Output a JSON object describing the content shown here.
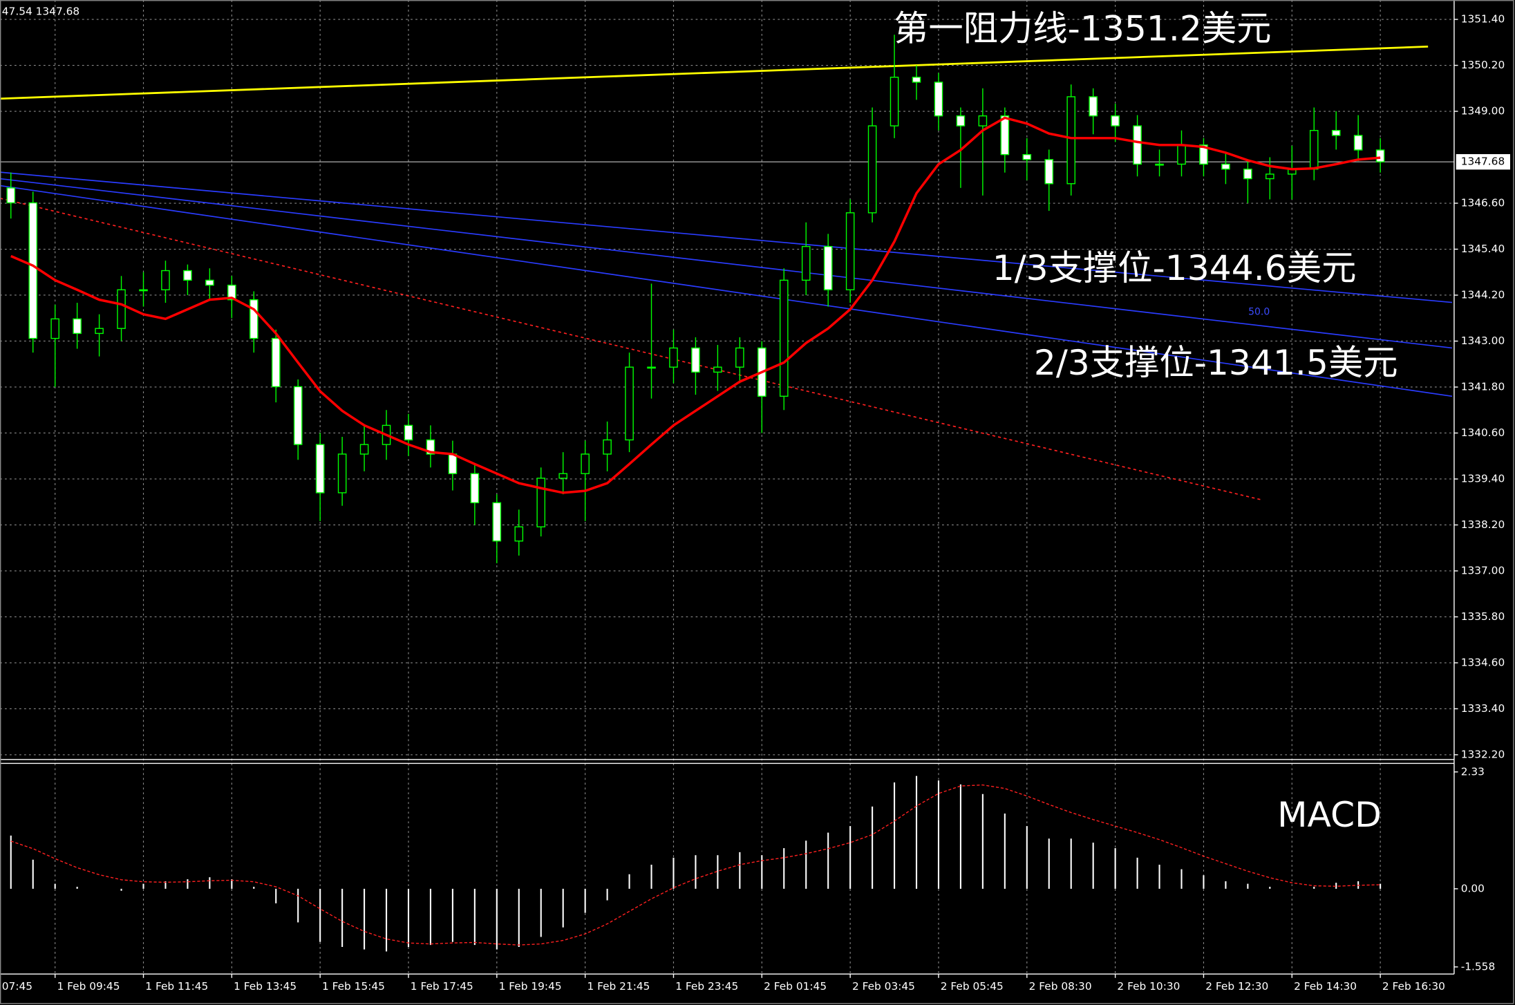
{
  "chart_data": {
    "type": "candlestick",
    "header": "47.54 1347.68",
    "x_label_cut": "07:45",
    "up_color": "#000000",
    "down_color": "#ffffff",
    "wick_color": "#00ff00",
    "grid": true,
    "ylim": [
      1332.1,
      1351.905
    ],
    "yticks": [
      {
        "value": 1351.4,
        "label": "1351.40"
      },
      {
        "value": 1350.2,
        "label": "1350.20"
      },
      {
        "value": 1349.0,
        "label": "1349.00"
      },
      {
        "value": 1346.6,
        "label": "1346.60"
      },
      {
        "value": 1345.4,
        "label": "1345.40"
      },
      {
        "value": 1344.2,
        "label": "1344.20"
      },
      {
        "value": 1343.0,
        "label": "1343.00"
      },
      {
        "value": 1341.8,
        "label": "1341.80"
      },
      {
        "value": 1340.6,
        "label": "1340.60"
      },
      {
        "value": 1339.4,
        "label": "1339.40"
      },
      {
        "value": 1338.2,
        "label": "1338.20"
      },
      {
        "value": 1337.0,
        "label": "1337.00"
      },
      {
        "value": 1335.8,
        "label": "1335.80"
      },
      {
        "value": 1334.6,
        "label": "1334.60"
      },
      {
        "value": 1333.4,
        "label": "1333.40"
      },
      {
        "value": 1332.2,
        "label": "1332.20"
      }
    ],
    "categories": [
      null,
      null,
      "1 Feb 09:45",
      null,
      null,
      null,
      "1 Feb 11:45",
      null,
      null,
      null,
      "1 Feb 13:45",
      null,
      null,
      null,
      "1 Feb 15:45",
      null,
      null,
      null,
      "1 Feb 17:45",
      null,
      null,
      null,
      "1 Feb 19:45",
      null,
      null,
      null,
      "1 Feb 21:45",
      null,
      null,
      null,
      "1 Feb 23:45",
      null,
      null,
      null,
      "2 Feb 01:45",
      null,
      null,
      null,
      "2 Feb 03:45",
      null,
      null,
      null,
      "2 Feb 05:45",
      null,
      null,
      null,
      "2 Feb 08:30",
      null,
      null,
      null,
      "2 Feb 10:30",
      null,
      null,
      null,
      "2 Feb 12:30",
      null,
      null,
      null,
      "2 Feb 14:30",
      null,
      null,
      null,
      "2 Feb 16:30"
    ],
    "candles": [
      [
        1347.0,
        1347.4,
        1346.2,
        1346.61
      ],
      [
        1346.61,
        1346.9,
        1342.7,
        1343.07
      ],
      [
        1343.07,
        1343.95,
        1341.8,
        1343.58
      ],
      [
        1343.58,
        1344.0,
        1342.8,
        1343.2
      ],
      [
        1343.2,
        1343.7,
        1342.6,
        1343.33
      ],
      [
        1343.33,
        1344.7,
        1343.0,
        1344.34
      ],
      [
        1344.34,
        1344.8,
        1343.9,
        1344.34
      ],
      [
        1344.34,
        1345.1,
        1344.0,
        1344.84
      ],
      [
        1344.84,
        1345.0,
        1344.2,
        1344.59
      ],
      [
        1344.59,
        1344.9,
        1344.1,
        1344.46
      ],
      [
        1344.46,
        1344.7,
        1343.6,
        1344.08
      ],
      [
        1344.08,
        1344.3,
        1342.7,
        1343.07
      ],
      [
        1343.07,
        1343.3,
        1341.4,
        1341.81
      ],
      [
        1341.81,
        1342.0,
        1339.9,
        1340.3
      ],
      [
        1340.3,
        1340.6,
        1338.3,
        1339.04
      ],
      [
        1339.04,
        1340.5,
        1338.7,
        1340.05
      ],
      [
        1340.05,
        1340.8,
        1339.6,
        1340.3
      ],
      [
        1340.3,
        1341.2,
        1339.9,
        1340.8
      ],
      [
        1340.8,
        1341.1,
        1340.0,
        1340.42
      ],
      [
        1340.42,
        1340.8,
        1339.7,
        1340.05
      ],
      [
        1340.05,
        1340.4,
        1339.1,
        1339.54
      ],
      [
        1339.54,
        1339.8,
        1338.2,
        1338.78
      ],
      [
        1338.78,
        1339.0,
        1337.2,
        1337.78
      ],
      [
        1337.78,
        1338.6,
        1337.4,
        1338.15
      ],
      [
        1338.15,
        1339.7,
        1337.9,
        1339.42
      ],
      [
        1339.42,
        1340.1,
        1339.0,
        1339.54
      ],
      [
        1339.54,
        1340.4,
        1338.3,
        1340.05
      ],
      [
        1340.05,
        1340.9,
        1339.6,
        1340.42
      ],
      [
        1340.42,
        1342.7,
        1340.1,
        1342.32
      ],
      [
        1342.32,
        1344.5,
        1341.5,
        1342.32
      ],
      [
        1342.32,
        1343.3,
        1341.9,
        1342.82
      ],
      [
        1342.82,
        1343.1,
        1341.6,
        1342.19
      ],
      [
        1342.19,
        1342.9,
        1341.7,
        1342.32
      ],
      [
        1342.32,
        1343.1,
        1341.9,
        1342.82
      ],
      [
        1342.82,
        1343.0,
        1340.6,
        1341.56
      ],
      [
        1341.56,
        1344.9,
        1341.2,
        1344.59
      ],
      [
        1344.59,
        1346.1,
        1344.2,
        1345.47
      ],
      [
        1345.47,
        1345.8,
        1343.9,
        1344.34
      ],
      [
        1344.34,
        1346.7,
        1344.0,
        1346.35
      ],
      [
        1346.35,
        1349.1,
        1346.1,
        1348.62
      ],
      [
        1348.62,
        1351.0,
        1348.3,
        1349.89
      ],
      [
        1349.89,
        1350.2,
        1349.3,
        1349.76
      ],
      [
        1349.76,
        1350.0,
        1348.5,
        1348.88
      ],
      [
        1348.88,
        1349.1,
        1347.0,
        1348.62
      ],
      [
        1348.62,
        1349.6,
        1346.8,
        1348.88
      ],
      [
        1348.88,
        1349.1,
        1347.4,
        1347.87
      ],
      [
        1347.87,
        1348.3,
        1347.2,
        1347.74
      ],
      [
        1347.74,
        1348.0,
        1346.4,
        1347.11
      ],
      [
        1347.11,
        1349.7,
        1346.8,
        1349.38
      ],
      [
        1349.38,
        1349.6,
        1348.4,
        1348.88
      ],
      [
        1348.88,
        1349.2,
        1348.2,
        1348.62
      ],
      [
        1348.62,
        1348.9,
        1347.3,
        1347.62
      ],
      [
        1347.62,
        1348.0,
        1347.3,
        1347.62
      ],
      [
        1347.62,
        1348.5,
        1347.3,
        1348.12
      ],
      [
        1348.12,
        1348.3,
        1347.3,
        1347.62
      ],
      [
        1347.62,
        1347.9,
        1347.1,
        1347.49
      ],
      [
        1347.49,
        1347.7,
        1346.6,
        1347.24
      ],
      [
        1347.24,
        1347.8,
        1346.7,
        1347.36
      ],
      [
        1347.36,
        1348.1,
        1346.7,
        1347.49
      ],
      [
        1347.49,
        1349.1,
        1347.2,
        1348.5
      ],
      [
        1348.5,
        1349.0,
        1348.0,
        1348.37
      ],
      [
        1348.37,
        1348.9,
        1347.7,
        1347.99
      ],
      [
        1347.99,
        1348.3,
        1347.4,
        1347.68
      ]
    ],
    "ma": {
      "color": "#ff0000",
      "values": [
        1345.22,
        1344.97,
        1344.59,
        1344.34,
        1344.08,
        1343.96,
        1343.7,
        1343.58,
        1343.83,
        1344.08,
        1344.13,
        1343.83,
        1343.2,
        1342.44,
        1341.69,
        1341.18,
        1340.8,
        1340.55,
        1340.3,
        1340.1,
        1340.05,
        1339.79,
        1339.54,
        1339.29,
        1339.16,
        1339.04,
        1339.09,
        1339.29,
        1339.79,
        1340.3,
        1340.8,
        1341.18,
        1341.56,
        1341.94,
        1342.19,
        1342.44,
        1342.95,
        1343.33,
        1343.83,
        1344.59,
        1345.6,
        1346.86,
        1347.62,
        1347.99,
        1348.5,
        1348.83,
        1348.68,
        1348.42,
        1348.3,
        1348.3,
        1348.3,
        1348.2,
        1348.12,
        1348.12,
        1348.07,
        1347.92,
        1347.72,
        1347.57,
        1347.49,
        1347.51,
        1347.62,
        1347.74,
        1347.79
      ]
    },
    "lines": [
      {
        "color": "#ffff00",
        "dash": false,
        "from": [
          -0.49,
          1349.33
        ],
        "to": [
          64.16,
          1350.69
        ]
      },
      {
        "color": "#2a3cff",
        "dash": false,
        "from": [
          -0.49,
          1347.41
        ],
        "to": [
          65.25,
          1344.01
        ]
      },
      {
        "color": "#2a3cff",
        "dash": false,
        "from": [
          -0.49,
          1347.24
        ],
        "to": [
          65.25,
          1342.82
        ]
      },
      {
        "color": "#2a3cff",
        "dash": false,
        "from": [
          -0.49,
          1347.06
        ],
        "to": [
          65.25,
          1341.56
        ]
      },
      {
        "color": "#ff2020",
        "dash": true,
        "from": [
          -0.49,
          1346.73
        ],
        "to": [
          56.59,
          1338.86
        ]
      }
    ],
    "current_line_color": "#a0a0a0",
    "annotations": [
      "第一阻力线-1351.2美元",
      "1/3支撑位-1344.6美元",
      "2/3支撑位-1341.5美元"
    ],
    "fib_label": "50.0",
    "macd": {
      "label": "MACD",
      "y2lim": [
        -1.7,
        2.5
      ],
      "y2ticks": [
        2.33,
        {
          "value": 0,
          "label": "0.00"
        },
        -1.558
      ],
      "hist_color": "#ffffff",
      "signal_color": "#ff2020",
      "histogram": [
        1.06,
        0.58,
        0.1,
        0.04,
        0,
        -0.04,
        0.1,
        0.15,
        0.19,
        0.23,
        0.19,
        0.04,
        -0.29,
        -0.67,
        -1.06,
        -1.16,
        -1.21,
        -1.25,
        -1.16,
        -1.12,
        -1.06,
        -1.12,
        -1.21,
        -1.16,
        -0.96,
        -0.77,
        -0.48,
        -0.23,
        0.29,
        0.48,
        0.62,
        0.67,
        0.67,
        0.73,
        0.67,
        0.81,
        0.96,
        1.12,
        1.25,
        1.64,
        2.12,
        2.25,
        2.16,
        2.08,
        1.89,
        1.5,
        1.25,
        1.0,
        1.0,
        0.92,
        0.81,
        0.62,
        0.48,
        0.39,
        0.27,
        0.15,
        0.1,
        0.04,
        0,
        0.04,
        0.12,
        0.15,
        0.1
      ],
      "signal": [
        0.95,
        0.8,
        0.6,
        0.42,
        0.28,
        0.18,
        0.14,
        0.13,
        0.14,
        0.16,
        0.17,
        0.14,
        0.04,
        -0.14,
        -0.4,
        -0.65,
        -0.85,
        -1.0,
        -1.08,
        -1.1,
        -1.08,
        -1.07,
        -1.1,
        -1.12,
        -1.1,
        -1.03,
        -0.9,
        -0.7,
        -0.45,
        -0.2,
        0.02,
        0.2,
        0.35,
        0.48,
        0.56,
        0.62,
        0.7,
        0.8,
        0.92,
        1.08,
        1.35,
        1.65,
        1.9,
        2.05,
        2.07,
        2.0,
        1.85,
        1.68,
        1.52,
        1.38,
        1.25,
        1.12,
        0.98,
        0.82,
        0.65,
        0.5,
        0.35,
        0.22,
        0.12,
        0.06,
        0.05,
        0.07,
        0.08
      ]
    }
  }
}
